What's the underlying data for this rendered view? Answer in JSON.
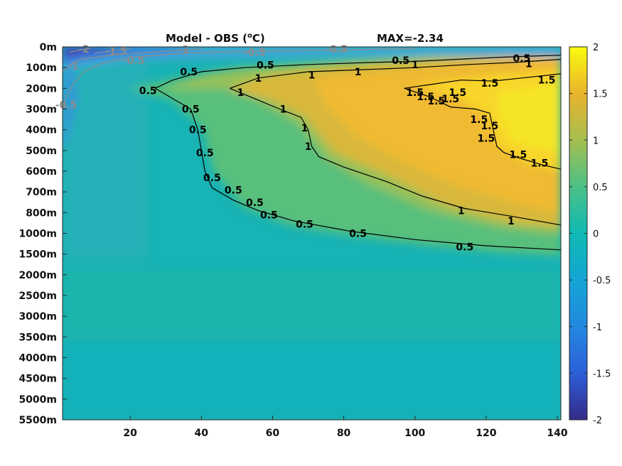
{
  "chart_data": {
    "type": "heatmap",
    "title": "Model - OBS (",
    "title_unit": "o",
    "title_suffix": "C)",
    "max_label": "MAX=-2.34",
    "x": {
      "range": [
        1,
        141
      ],
      "ticks": [
        20,
        40,
        60,
        80,
        100,
        120,
        140
      ],
      "tick_labels": [
        "20",
        "40",
        "60",
        "80",
        "100",
        "120",
        "140"
      ]
    },
    "y": {
      "reversed": true,
      "tick_labels": [
        "0m",
        "100m",
        "200m",
        "300m",
        "400m",
        "500m",
        "600m",
        "700m",
        "800m",
        "1000m",
        "1500m",
        "2000m",
        "2500m",
        "3000m",
        "3500m",
        "4000m",
        "4500m",
        "5000m",
        "5500m"
      ]
    },
    "colorbar": {
      "range": [
        -2,
        2
      ],
      "ticks": [
        2,
        1.5,
        1,
        0.5,
        0,
        -0.5,
        -1,
        -1.5,
        -2
      ],
      "tick_labels": [
        "2",
        "1.5",
        "1",
        "0.5",
        "0",
        "-0.5",
        "-1",
        "-1.5",
        "-2"
      ],
      "colormap": "parula"
    },
    "contours": [
      {
        "level": 0.5,
        "color": "#000000",
        "path": [
          [
            27,
            2.0
          ],
          [
            32,
            1.6
          ],
          [
            40,
            1.2
          ],
          [
            52,
            1.0
          ],
          [
            70,
            0.85
          ],
          [
            88,
            0.75
          ],
          [
            100,
            0.7
          ],
          [
            112,
            0.6
          ],
          [
            124,
            0.5
          ],
          [
            132,
            0.45
          ],
          [
            141,
            0.4
          ],
          [
            141,
            0.4
          ]
        ],
        "path2": [
          [
            27,
            2.0
          ],
          [
            31,
            2.4
          ],
          [
            37,
            3.0
          ],
          [
            39,
            4.0
          ],
          [
            40,
            5.0
          ],
          [
            41,
            6.0
          ],
          [
            43,
            6.8
          ],
          [
            49,
            7.4
          ],
          [
            56,
            7.9
          ],
          [
            66,
            8.4
          ],
          [
            82,
            8.9
          ],
          [
            100,
            9.3
          ],
          [
            120,
            9.6
          ],
          [
            141,
            9.8
          ]
        ],
        "labels": [
          [
            36.5,
            1.2,
            "0.5"
          ],
          [
            58,
            0.88,
            "0.5"
          ],
          [
            96,
            0.65,
            "0.5"
          ],
          [
            130,
            0.55,
            "0.5"
          ],
          [
            25,
            2.1,
            "0.5"
          ],
          [
            37,
            3.0,
            "0.5"
          ],
          [
            39,
            4.0,
            "0.5"
          ],
          [
            41,
            5.1,
            "0.5"
          ],
          [
            43,
            6.3,
            "0.5"
          ],
          [
            49,
            6.9,
            "0.5"
          ],
          [
            55,
            7.5,
            "0.5"
          ],
          [
            59,
            8.1,
            "0.5"
          ],
          [
            69,
            8.55,
            "0.5"
          ],
          [
            84,
            9.0,
            "0.5"
          ],
          [
            114,
            9.65,
            "0.5"
          ]
        ]
      },
      {
        "level": 1,
        "color": "#000000",
        "path": [
          [
            48,
            2.0
          ],
          [
            56,
            1.5
          ],
          [
            70,
            1.2
          ],
          [
            85,
            1.1
          ],
          [
            100,
            1.0
          ],
          [
            115,
            0.85
          ],
          [
            128,
            0.75
          ],
          [
            141,
            0.6
          ]
        ],
        "path2": [
          [
            48,
            2.0
          ],
          [
            55,
            2.5
          ],
          [
            62,
            3.0
          ],
          [
            68,
            3.4
          ],
          [
            70,
            4.0
          ],
          [
            71,
            4.8
          ],
          [
            73,
            5.3
          ],
          [
            80,
            5.8
          ],
          [
            92,
            6.5
          ],
          [
            102,
            7.2
          ],
          [
            114,
            7.8
          ],
          [
            128,
            8.2
          ],
          [
            141,
            8.6
          ]
        ],
        "labels": [
          [
            56,
            1.5,
            "1"
          ],
          [
            71,
            1.35,
            "1"
          ],
          [
            84,
            1.2,
            "1"
          ],
          [
            100,
            0.85,
            "1"
          ],
          [
            132,
            0.8,
            "1"
          ],
          [
            51,
            2.2,
            "1"
          ],
          [
            63,
            3.0,
            "1"
          ],
          [
            69,
            3.9,
            "1"
          ],
          [
            70,
            4.8,
            "1"
          ],
          [
            113,
            7.9,
            "1"
          ],
          [
            127,
            8.4,
            "1"
          ]
        ]
      },
      {
        "level": 1.5,
        "color": "#000000",
        "path": [
          [
            97,
            2.0
          ],
          [
            105,
            1.8
          ],
          [
            113,
            1.6
          ],
          [
            122,
            1.65
          ],
          [
            130,
            1.5
          ],
          [
            141,
            1.3
          ]
        ],
        "path2": [
          [
            97,
            2.0
          ],
          [
            104,
            2.4
          ],
          [
            110,
            2.9
          ],
          [
            117,
            3.0
          ],
          [
            121,
            3.2
          ],
          [
            122,
            4.0
          ],
          [
            123,
            4.8
          ],
          [
            125,
            5.1
          ],
          [
            130,
            5.4
          ],
          [
            136,
            5.7
          ],
          [
            141,
            5.9
          ]
        ],
        "labels": [
          [
            100,
            2.2,
            "1.5"
          ],
          [
            103,
            2.4,
            "1.5"
          ],
          [
            106,
            2.6,
            "1.5"
          ],
          [
            110,
            2.5,
            "1.5"
          ],
          [
            112,
            2.2,
            "1.5"
          ],
          [
            121,
            1.75,
            "1.5"
          ],
          [
            137,
            1.6,
            "1.5"
          ],
          [
            118,
            3.5,
            "1.5"
          ],
          [
            121,
            3.8,
            "1.5"
          ],
          [
            120,
            4.4,
            "1.5"
          ],
          [
            129,
            5.2,
            "1.5"
          ],
          [
            135,
            5.6,
            "1.5"
          ]
        ]
      },
      {
        "level": -0.5,
        "color": "#8c8c8c",
        "path": [
          [
            1,
            3.0
          ],
          [
            2,
            2.4
          ],
          [
            4,
            1.8
          ],
          [
            7,
            1.2
          ],
          [
            12,
            0.8
          ],
          [
            20,
            0.5
          ],
          [
            35,
            0.3
          ],
          [
            55,
            0.2
          ],
          [
            80,
            0.15
          ],
          [
            100,
            0.08
          ]
        ],
        "labels": [
          [
            2,
            2.8,
            "-0.5"
          ],
          [
            21,
            0.65,
            "-0.5"
          ],
          [
            55,
            0.25,
            "-0.5"
          ],
          [
            78,
            0.1,
            "-0.5"
          ]
        ]
      },
      {
        "level": -1,
        "color": "#8c8c8c",
        "path": [
          [
            1,
            1.2
          ],
          [
            3,
            0.9
          ],
          [
            6,
            0.6
          ],
          [
            12,
            0.45
          ],
          [
            22,
            0.3
          ],
          [
            40,
            0.1
          ]
        ],
        "labels": [
          [
            4,
            0.9,
            "-1"
          ],
          [
            35,
            0.12,
            "-1"
          ]
        ]
      },
      {
        "level": -1.5,
        "color": "#8c8c8c",
        "path": [
          [
            10,
            0.3
          ],
          [
            14,
            0.2
          ],
          [
            20,
            0.1
          ]
        ],
        "labels": [
          [
            16,
            0.2,
            "-1.5"
          ]
        ]
      },
      {
        "level": -2,
        "color": "#8c8c8c",
        "path": [
          [
            3,
            0.25
          ],
          [
            6,
            0.15
          ],
          [
            9,
            0.05
          ]
        ],
        "labels": [
          [
            7,
            0.1,
            "-2"
          ]
        ]
      }
    ]
  }
}
